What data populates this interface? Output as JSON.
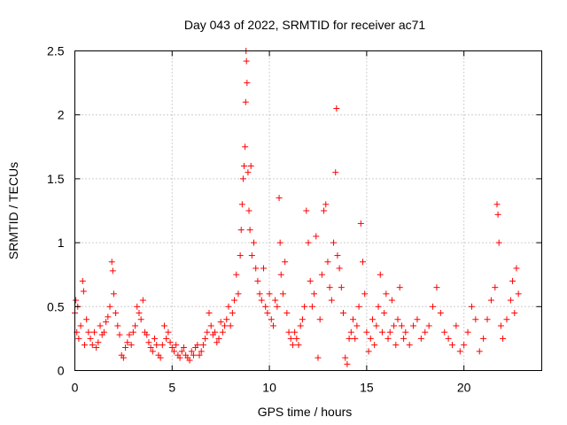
{
  "chart_data": {
    "type": "scatter",
    "title": "Day 043 of 2022, SRMTID for receiver ac71",
    "xlabel": "GPS time / hours",
    "ylabel": "SRMTID / TECUs",
    "xlim": [
      0,
      24
    ],
    "ylim": [
      0,
      2.5
    ],
    "xticks": [
      0,
      5,
      10,
      15,
      20
    ],
    "xtick_labels": [
      "0",
      "5",
      "10",
      "15",
      "20"
    ],
    "yticks": [
      0,
      0.5,
      1,
      1.5,
      2,
      2.5
    ],
    "ytick_labels": [
      "0",
      "0.5",
      "1",
      "1.5",
      "2",
      "2.5"
    ],
    "grid": true,
    "marker": "+",
    "series": [
      {
        "name": "SRMTID",
        "color": "#ff0000",
        "points": [
          [
            0.0,
            0.45
          ],
          [
            0.05,
            0.55
          ],
          [
            0.1,
            0.3
          ],
          [
            0.15,
            0.5
          ],
          [
            0.2,
            0.25
          ],
          [
            0.3,
            0.35
          ],
          [
            0.4,
            0.7
          ],
          [
            0.45,
            0.62
          ],
          [
            0.5,
            0.2
          ],
          [
            0.6,
            0.4
          ],
          [
            0.7,
            0.3
          ],
          [
            0.8,
            0.25
          ],
          [
            0.9,
            0.2
          ],
          [
            1.0,
            0.3
          ],
          [
            1.1,
            0.18
          ],
          [
            1.2,
            0.22
          ],
          [
            1.3,
            0.35
          ],
          [
            1.4,
            0.28
          ],
          [
            1.5,
            0.3
          ],
          [
            1.6,
            0.38
          ],
          [
            1.7,
            0.42
          ],
          [
            1.8,
            0.5
          ],
          [
            1.9,
            0.85
          ],
          [
            1.95,
            0.78
          ],
          [
            2.0,
            0.6
          ],
          [
            2.1,
            0.45
          ],
          [
            2.2,
            0.35
          ],
          [
            2.3,
            0.28
          ],
          [
            2.4,
            0.12
          ],
          [
            2.5,
            0.1
          ],
          [
            2.6,
            0.18
          ],
          [
            2.7,
            0.22
          ],
          [
            2.8,
            0.28
          ],
          [
            2.9,
            0.2
          ],
          [
            3.0,
            0.3
          ],
          [
            3.1,
            0.35
          ],
          [
            3.2,
            0.5
          ],
          [
            3.3,
            0.45
          ],
          [
            3.4,
            0.4
          ],
          [
            3.5,
            0.55
          ],
          [
            3.6,
            0.3
          ],
          [
            3.7,
            0.28
          ],
          [
            3.8,
            0.22
          ],
          [
            3.9,
            0.18
          ],
          [
            4.0,
            0.15
          ],
          [
            4.1,
            0.25
          ],
          [
            4.2,
            0.2
          ],
          [
            4.3,
            0.12
          ],
          [
            4.4,
            0.1
          ],
          [
            4.5,
            0.2
          ],
          [
            4.6,
            0.35
          ],
          [
            4.7,
            0.25
          ],
          [
            4.8,
            0.3
          ],
          [
            4.9,
            0.22
          ],
          [
            5.0,
            0.18
          ],
          [
            5.1,
            0.15
          ],
          [
            5.2,
            0.2
          ],
          [
            5.3,
            0.12
          ],
          [
            5.4,
            0.1
          ],
          [
            5.5,
            0.15
          ],
          [
            5.6,
            0.18
          ],
          [
            5.7,
            0.12
          ],
          [
            5.8,
            0.1
          ],
          [
            5.9,
            0.08
          ],
          [
            6.0,
            0.15
          ],
          [
            6.1,
            0.12
          ],
          [
            6.2,
            0.18
          ],
          [
            6.3,
            0.2
          ],
          [
            6.4,
            0.12
          ],
          [
            6.5,
            0.15
          ],
          [
            6.6,
            0.2
          ],
          [
            6.7,
            0.25
          ],
          [
            6.8,
            0.3
          ],
          [
            6.9,
            0.45
          ],
          [
            7.0,
            0.35
          ],
          [
            7.1,
            0.28
          ],
          [
            7.2,
            0.3
          ],
          [
            7.3,
            0.22
          ],
          [
            7.4,
            0.25
          ],
          [
            7.5,
            0.38
          ],
          [
            7.6,
            0.3
          ],
          [
            7.7,
            0.35
          ],
          [
            7.8,
            0.4
          ],
          [
            7.9,
            0.5
          ],
          [
            8.0,
            0.35
          ],
          [
            8.1,
            0.45
          ],
          [
            8.2,
            0.55
          ],
          [
            8.3,
            0.75
          ],
          [
            8.4,
            0.6
          ],
          [
            8.5,
            0.9
          ],
          [
            8.55,
            1.1
          ],
          [
            8.6,
            1.3
          ],
          [
            8.65,
            1.5
          ],
          [
            8.7,
            1.6
          ],
          [
            8.75,
            1.75
          ],
          [
            8.78,
            2.1
          ],
          [
            8.8,
            2.5
          ],
          [
            8.82,
            2.42
          ],
          [
            8.85,
            2.25
          ],
          [
            8.9,
            1.55
          ],
          [
            8.95,
            1.25
          ],
          [
            9.0,
            1.1
          ],
          [
            9.05,
            1.6
          ],
          [
            9.1,
            0.9
          ],
          [
            9.2,
            1.0
          ],
          [
            9.3,
            0.8
          ],
          [
            9.4,
            0.7
          ],
          [
            9.5,
            0.6
          ],
          [
            9.6,
            0.55
          ],
          [
            9.7,
            0.8
          ],
          [
            9.8,
            0.5
          ],
          [
            9.9,
            0.45
          ],
          [
            10.0,
            0.6
          ],
          [
            10.1,
            0.4
          ],
          [
            10.2,
            0.35
          ],
          [
            10.3,
            0.55
          ],
          [
            10.4,
            0.5
          ],
          [
            10.5,
            1.35
          ],
          [
            10.55,
            1.0
          ],
          [
            10.6,
            0.75
          ],
          [
            10.7,
            0.6
          ],
          [
            10.8,
            0.85
          ],
          [
            10.9,
            0.45
          ],
          [
            11.0,
            0.3
          ],
          [
            11.1,
            0.25
          ],
          [
            11.2,
            0.2
          ],
          [
            11.3,
            0.3
          ],
          [
            11.4,
            0.25
          ],
          [
            11.5,
            0.2
          ],
          [
            11.6,
            0.35
          ],
          [
            11.7,
            0.4
          ],
          [
            11.8,
            0.5
          ],
          [
            11.9,
            1.25
          ],
          [
            12.0,
            1.0
          ],
          [
            12.1,
            0.7
          ],
          [
            12.2,
            0.5
          ],
          [
            12.3,
            0.6
          ],
          [
            12.4,
            1.05
          ],
          [
            12.5,
            0.1
          ],
          [
            12.6,
            0.4
          ],
          [
            12.7,
            0.75
          ],
          [
            12.8,
            1.25
          ],
          [
            12.9,
            1.3
          ],
          [
            13.0,
            0.85
          ],
          [
            13.1,
            0.65
          ],
          [
            13.2,
            0.55
          ],
          [
            13.3,
            1.0
          ],
          [
            13.4,
            1.55
          ],
          [
            13.45,
            2.05
          ],
          [
            13.5,
            0.9
          ],
          [
            13.6,
            0.8
          ],
          [
            13.7,
            0.65
          ],
          [
            13.8,
            0.45
          ],
          [
            13.9,
            0.1
          ],
          [
            14.0,
            0.05
          ],
          [
            14.1,
            0.25
          ],
          [
            14.2,
            0.3
          ],
          [
            14.3,
            0.4
          ],
          [
            14.4,
            0.25
          ],
          [
            14.5,
            0.35
          ],
          [
            14.6,
            0.5
          ],
          [
            14.7,
            1.15
          ],
          [
            14.8,
            0.85
          ],
          [
            14.9,
            0.6
          ],
          [
            15.0,
            0.3
          ],
          [
            15.1,
            0.15
          ],
          [
            15.2,
            0.25
          ],
          [
            15.3,
            0.4
          ],
          [
            15.4,
            0.2
          ],
          [
            15.5,
            0.35
          ],
          [
            15.6,
            0.5
          ],
          [
            15.7,
            0.75
          ],
          [
            15.8,
            0.3
          ],
          [
            15.9,
            0.45
          ],
          [
            16.0,
            0.6
          ],
          [
            16.1,
            0.25
          ],
          [
            16.2,
            0.3
          ],
          [
            16.3,
            0.55
          ],
          [
            16.4,
            0.35
          ],
          [
            16.5,
            0.2
          ],
          [
            16.6,
            0.4
          ],
          [
            16.7,
            0.65
          ],
          [
            16.8,
            0.35
          ],
          [
            16.9,
            0.25
          ],
          [
            17.0,
            0.3
          ],
          [
            17.2,
            0.2
          ],
          [
            17.4,
            0.35
          ],
          [
            17.6,
            0.4
          ],
          [
            17.8,
            0.25
          ],
          [
            18.0,
            0.3
          ],
          [
            18.2,
            0.35
          ],
          [
            18.4,
            0.5
          ],
          [
            18.6,
            0.65
          ],
          [
            18.8,
            0.45
          ],
          [
            19.0,
            0.3
          ],
          [
            19.2,
            0.25
          ],
          [
            19.4,
            0.2
          ],
          [
            19.6,
            0.35
          ],
          [
            19.8,
            0.15
          ],
          [
            20.0,
            0.2
          ],
          [
            20.2,
            0.3
          ],
          [
            20.4,
            0.5
          ],
          [
            20.6,
            0.4
          ],
          [
            20.8,
            0.15
          ],
          [
            21.0,
            0.25
          ],
          [
            21.2,
            0.4
          ],
          [
            21.4,
            0.55
          ],
          [
            21.6,
            0.65
          ],
          [
            21.7,
            1.3
          ],
          [
            21.75,
            1.22
          ],
          [
            21.8,
            1.0
          ],
          [
            21.9,
            0.35
          ],
          [
            22.0,
            0.25
          ],
          [
            22.2,
            0.4
          ],
          [
            22.4,
            0.55
          ],
          [
            22.5,
            0.7
          ],
          [
            22.6,
            0.45
          ],
          [
            22.7,
            0.8
          ],
          [
            22.8,
            0.6
          ]
        ]
      }
    ]
  }
}
